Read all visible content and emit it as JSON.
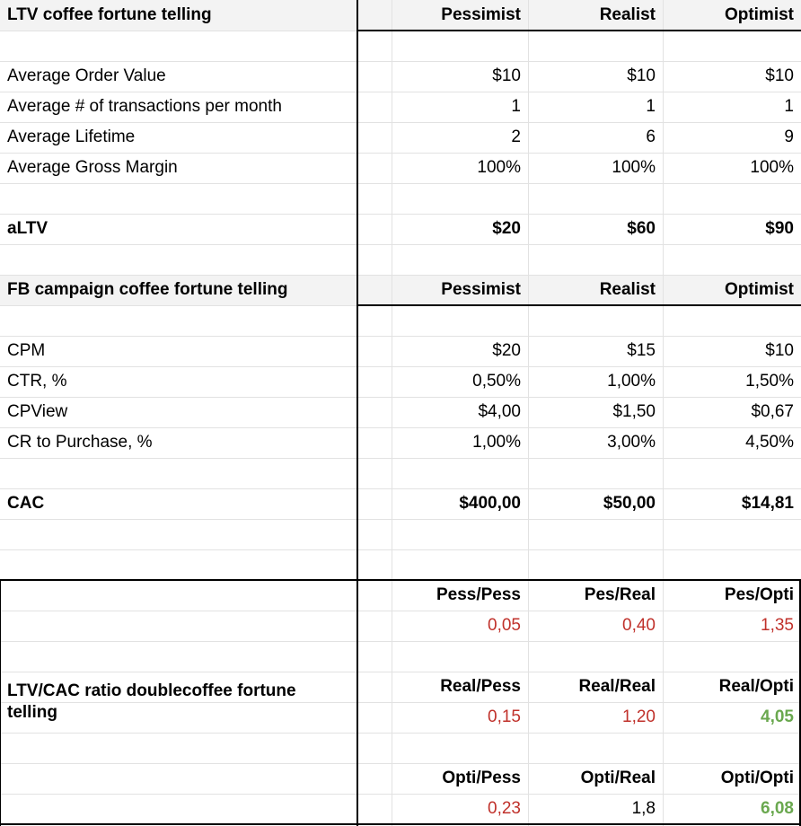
{
  "ltv_section": {
    "title": "LTV coffee fortune telling",
    "headers": [
      "Pessimist",
      "Realist",
      "Optimist"
    ],
    "rows": [
      {
        "label": "Average Order Value",
        "values": [
          "$10",
          "$10",
          "$10"
        ]
      },
      {
        "label": "Average # of transactions per month",
        "values": [
          "1",
          "1",
          "1"
        ]
      },
      {
        "label": "Average Lifetime",
        "values": [
          "2",
          "6",
          "9"
        ]
      },
      {
        "label": "Average Gross Margin",
        "values": [
          "100%",
          "100%",
          "100%"
        ]
      }
    ],
    "total": {
      "label": "aLTV",
      "values": [
        "$20",
        "$60",
        "$90"
      ]
    }
  },
  "fb_section": {
    "title": "FB campaign coffee fortune telling",
    "headers": [
      "Pessimist",
      "Realist",
      "Optimist"
    ],
    "rows": [
      {
        "label": "CPM",
        "values": [
          "$20",
          "$15",
          "$10"
        ]
      },
      {
        "label": "CTR, %",
        "values": [
          "0,50%",
          "1,00%",
          "1,50%"
        ]
      },
      {
        "label": "CPView",
        "values": [
          "$4,00",
          "$1,50",
          "$0,67"
        ]
      },
      {
        "label": "CR to Purchase, %",
        "values": [
          "1,00%",
          "3,00%",
          "4,50%"
        ]
      }
    ],
    "total": {
      "label": "CAC",
      "values": [
        "$400,00",
        "$50,00",
        "$14,81"
      ]
    }
  },
  "ratio_section": {
    "title": "LTV/CAC ratio doublecoffee fortune telling",
    "groups": [
      {
        "headers": [
          "Pess/Pess",
          "Pes/Real",
          "Pes/Opti"
        ],
        "values": [
          "0,05",
          "0,40",
          "1,35"
        ]
      },
      {
        "headers": [
          "Real/Pess",
          "Real/Real",
          "Real/Opti"
        ],
        "values": [
          "0,15",
          "1,20",
          "4,05"
        ]
      },
      {
        "headers": [
          "Opti/Pess",
          "Opti/Real",
          "Opti/Opti"
        ],
        "values": [
          "0,23",
          "1,8",
          "6,08"
        ]
      }
    ]
  },
  "colors": {
    "below_target": "#c0312b",
    "above_target": "#6aa84f",
    "header_bg": "#f3f3f3"
  }
}
